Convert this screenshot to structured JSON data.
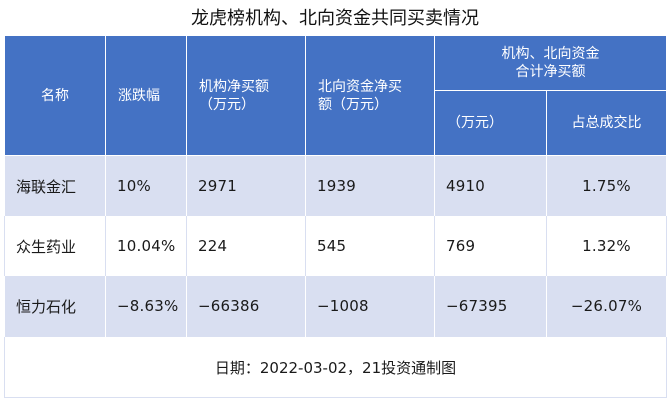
{
  "title": "龙虎榜机构、北向资金共同买卖情况",
  "headers": {
    "name": "名称",
    "change": "涨跌幅",
    "inst_line1": "机构净买额",
    "inst_line2": "（万元）",
    "north_line1": "北向资金净买",
    "north_line2": "额（万元）",
    "combined_line1": "机构、北向资金",
    "combined_line2": "合计净买额",
    "combined_unit": "（万元）",
    "share": "占总成交比"
  },
  "rows": [
    {
      "name": "海联金汇",
      "change": "10%",
      "inst": "2971",
      "north": "1939",
      "total": "4910",
      "share": "1.75%"
    },
    {
      "name": "众生药业",
      "change": "10.04%",
      "inst": "224",
      "north": "545",
      "total": "769",
      "share": "1.32%"
    },
    {
      "name": "恒力石化",
      "change": "−8.63%",
      "inst": "−66386",
      "north": "−1008",
      "total": "−67395",
      "share": "−26.07%"
    }
  ],
  "footer": "日期：2022-03-02，21投资通制图",
  "colors": {
    "header_bg": "#4472c4",
    "band": "#d9dff1"
  }
}
